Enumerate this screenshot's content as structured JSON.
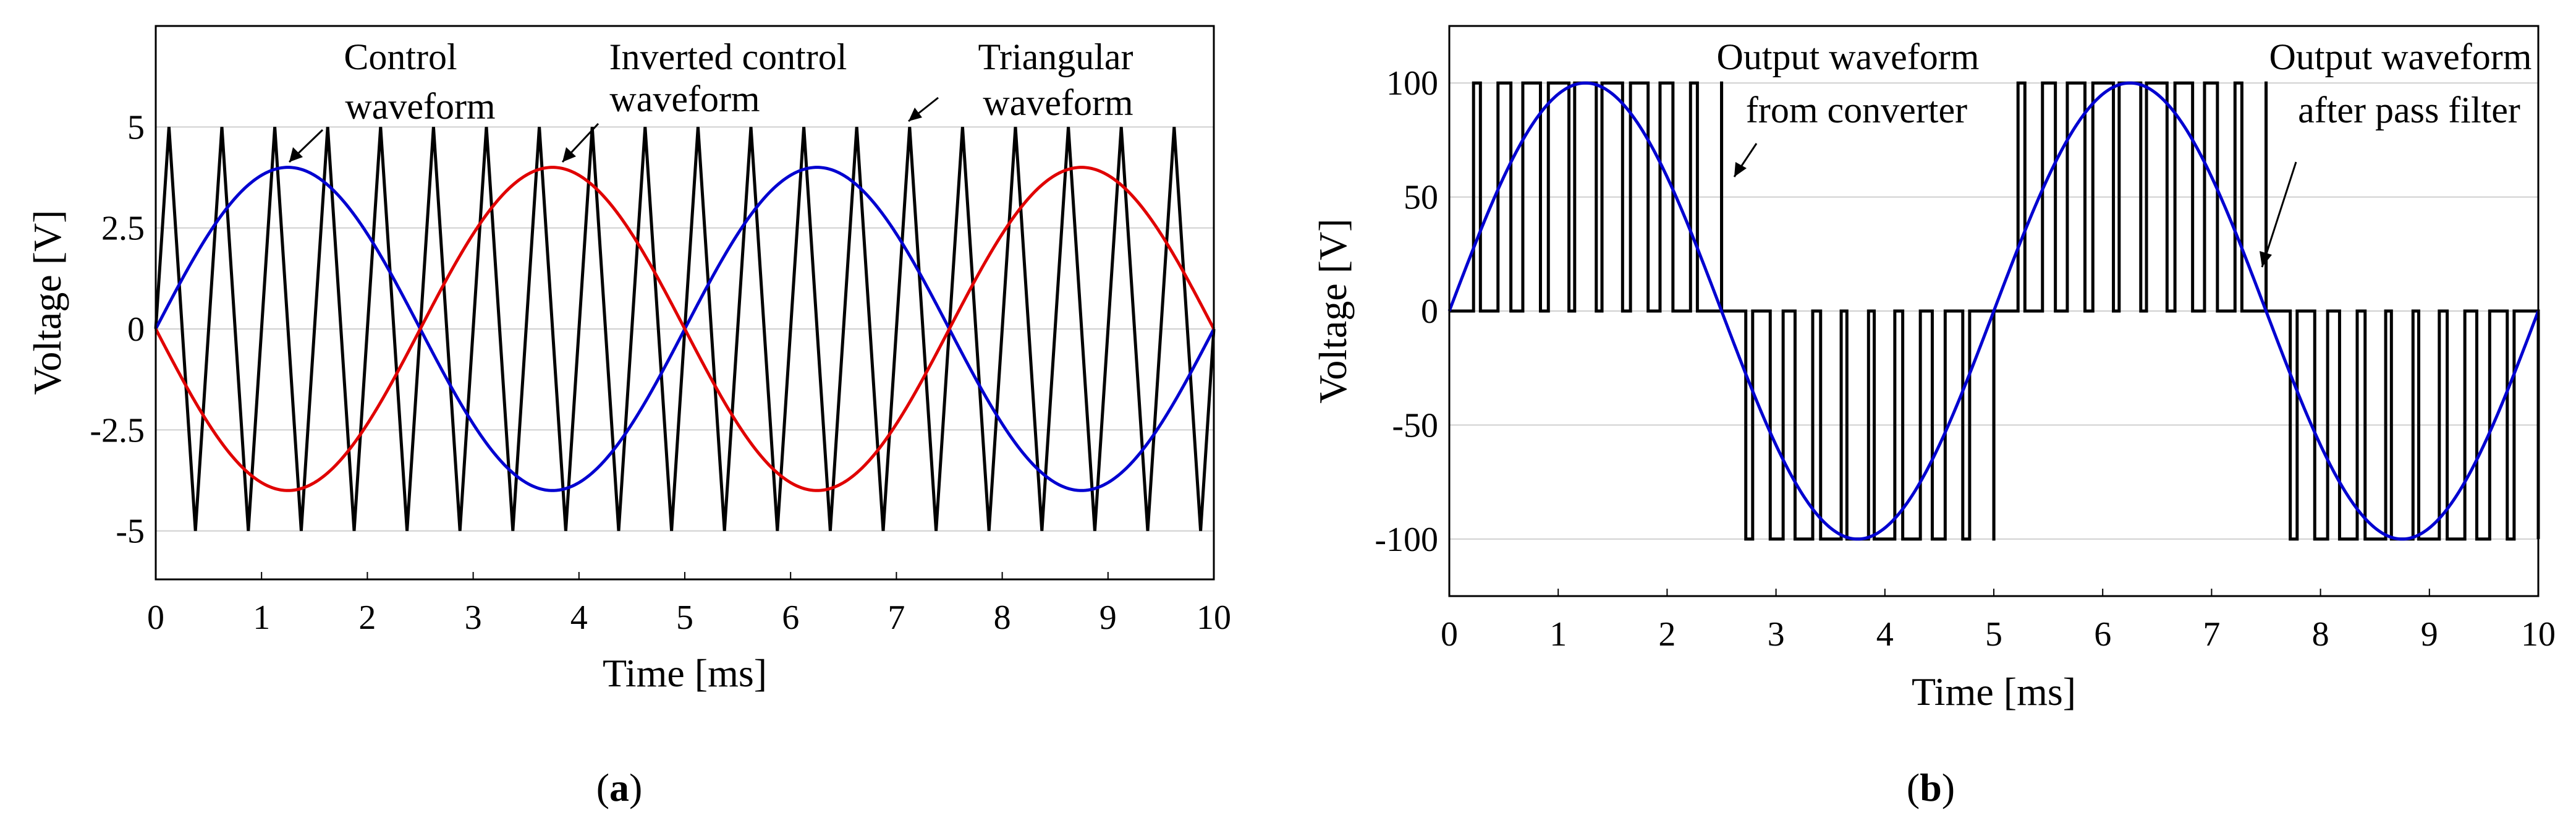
{
  "chart_data": [
    {
      "type": "line",
      "panel_label": {
        "pre": "(",
        "letter": "a",
        "post": ")"
      },
      "xlabel": "Time [ms]",
      "ylabel": "Voltage [V]",
      "xlim": [
        0,
        10
      ],
      "ylim": [
        -6.2,
        7.5
      ],
      "xticks": [
        0,
        1,
        2,
        3,
        4,
        5,
        6,
        7,
        8,
        9,
        10
      ],
      "yticks": [
        5,
        2.5,
        0,
        -2.5,
        -5
      ],
      "ytick_labels": [
        "5",
        "2.5",
        "0",
        "-2.5",
        "-5"
      ],
      "grid": true,
      "series": [
        {
          "name": "Control waveform",
          "kind": "sine",
          "amplitude": 4,
          "period_ms": 5,
          "phase": 0,
          "color": "#0000d0"
        },
        {
          "name": "Inverted control waveform",
          "kind": "sine",
          "amplitude": -4,
          "period_ms": 5,
          "phase": 0,
          "color": "#e00000"
        },
        {
          "name": "Triangular waveform",
          "kind": "triangle",
          "peak": 5,
          "trough": -5,
          "period_ms": 0.5,
          "color": "#000000"
        }
      ],
      "annotations": [
        {
          "lines": [
            "Control",
            "waveform"
          ],
          "arrow_to": [
            1.25,
            4.0
          ]
        },
        {
          "lines": [
            "Inverted control",
            "waveform"
          ],
          "arrow_to": [
            3.75,
            4.0
          ]
        },
        {
          "lines": [
            "Triangular",
            "waveform"
          ],
          "arrow_to": [
            6.95,
            5.0
          ]
        }
      ]
    },
    {
      "type": "line",
      "panel_label": {
        "pre": "(",
        "letter": "b",
        "post": ")"
      },
      "xlabel": "Time [ms]",
      "ylabel": "Voltage [V]",
      "xlim": [
        0,
        10
      ],
      "ylim": [
        -125,
        125
      ],
      "xticks": [
        0,
        1,
        2,
        3,
        4,
        5,
        6,
        7,
        8,
        9,
        10
      ],
      "yticks": [
        100,
        50,
        0,
        -50,
        -100
      ],
      "ytick_labels": [
        "100",
        "50",
        "0",
        "-50",
        "-100"
      ],
      "grid": true,
      "series": [
        {
          "name": "Output waveform from converter",
          "kind": "unipolar_pwm",
          "level": 100,
          "derived_from": "comparison of control waveforms with triangular carrier",
          "color": "#000000"
        },
        {
          "name": "Output waveform after pass filter",
          "kind": "sine",
          "amplitude": 100,
          "period_ms": 5,
          "phase": 0,
          "color": "#0000d0"
        }
      ],
      "annotations": [
        {
          "lines": [
            "Output waveform",
            "from converter"
          ],
          "arrow_to": [
            2.58,
            60
          ]
        },
        {
          "lines": [
            "Output waveform",
            "after pass filter"
          ],
          "arrow_to": [
            7.42,
            18
          ]
        }
      ]
    }
  ]
}
